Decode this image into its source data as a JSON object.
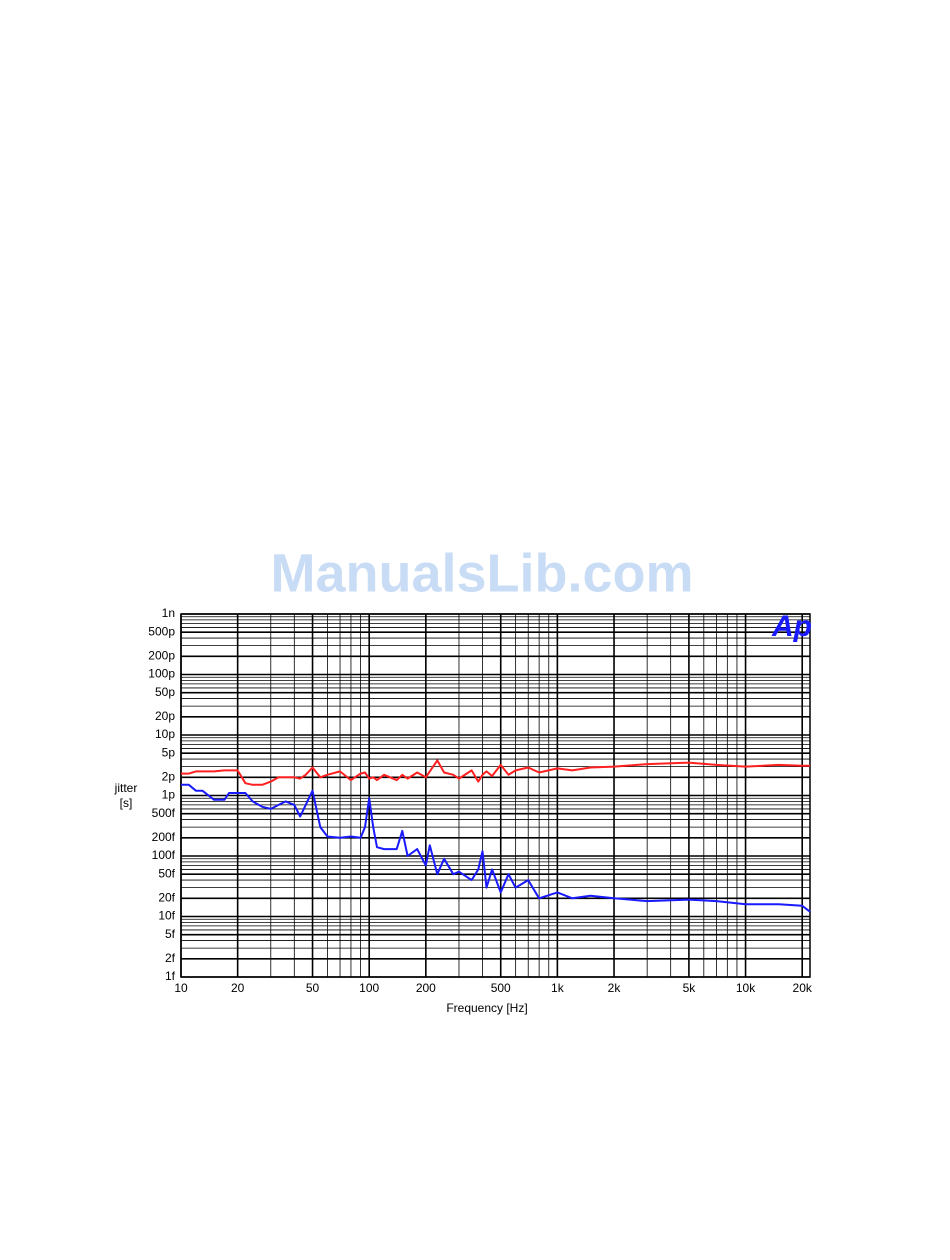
{
  "watermark": "ManualsLib.com",
  "logo": "Ap",
  "chart_data": {
    "type": "line",
    "xlabel": "Frequency [Hz]",
    "ylabel": [
      "jitter",
      "[s]"
    ],
    "xscale": "log",
    "yscale": "log",
    "grid": "major-minor",
    "xlim": [
      10,
      22000
    ],
    "ylim": [
      1e-15,
      1e-09
    ],
    "xticks": [
      10,
      20,
      50,
      100,
      200,
      500,
      {
        "value": 1000,
        "label": "1k"
      },
      {
        "value": 2000,
        "label": "2k"
      },
      {
        "value": 5000,
        "label": "5k"
      },
      {
        "value": 10000,
        "label": "10k"
      },
      {
        "value": 20000,
        "label": "20k"
      }
    ],
    "yticks": [
      {
        "value": 1e-09,
        "label": "1n"
      },
      {
        "value": 5e-10,
        "label": "500p"
      },
      {
        "value": 2e-10,
        "label": "200p"
      },
      {
        "value": 1e-10,
        "label": "100p"
      },
      {
        "value": 5e-11,
        "label": "50p"
      },
      {
        "value": 2e-11,
        "label": "20p"
      },
      {
        "value": 1e-11,
        "label": "10p"
      },
      {
        "value": 5e-12,
        "label": "5p"
      },
      {
        "value": 2e-12,
        "label": "2p"
      },
      {
        "value": 1e-12,
        "label": "1p"
      },
      {
        "value": 5e-13,
        "label": "500f"
      },
      {
        "value": 2e-13,
        "label": "200f"
      },
      {
        "value": 1e-13,
        "label": "100f"
      },
      {
        "value": 5e-14,
        "label": "50f"
      },
      {
        "value": 2e-14,
        "label": "20f"
      },
      {
        "value": 1e-14,
        "label": "10f"
      },
      {
        "value": 5e-15,
        "label": "5f"
      },
      {
        "value": 2e-15,
        "label": "2f"
      },
      {
        "value": 1e-15,
        "label": "1f"
      }
    ],
    "x": [
      10,
      11,
      12,
      13,
      15,
      17,
      18,
      20,
      22,
      24,
      27,
      30,
      33,
      36,
      40,
      43,
      46,
      50,
      55,
      60,
      70,
      80,
      90,
      95,
      100,
      105,
      110,
      120,
      140,
      150,
      160,
      180,
      200,
      210,
      230,
      250,
      280,
      300,
      350,
      380,
      400,
      420,
      450,
      500,
      550,
      600,
      700,
      800,
      1000,
      1200,
      1500,
      2000,
      3000,
      5000,
      7000,
      10000,
      15000,
      20000,
      22000
    ],
    "series": [
      {
        "color": "#ff2020",
        "values": [
          2.3e-12,
          2.3e-12,
          2.5e-12,
          2.5e-12,
          2.5e-12,
          2.6e-12,
          2.6e-12,
          2.6e-12,
          1.6e-12,
          1.5e-12,
          1.5e-12,
          1.7e-12,
          2e-12,
          2e-12,
          2e-12,
          1.9e-12,
          2.2e-12,
          2.9e-12,
          2e-12,
          2.2e-12,
          2.5e-12,
          1.8e-12,
          2.3e-12,
          2.4e-12,
          1.9e-12,
          2e-12,
          1.8e-12,
          2.2e-12,
          1.8e-12,
          2.2e-12,
          1.9e-12,
          2.4e-12,
          2e-12,
          2.5e-12,
          3.8e-12,
          2.4e-12,
          2.2e-12,
          1.9e-12,
          2.6e-12,
          1.7e-12,
          2.2e-12,
          2.5e-12,
          2.1e-12,
          3.2e-12,
          2.2e-12,
          2.6e-12,
          2.9e-12,
          2.4e-12,
          2.8e-12,
          2.6e-12,
          2.9e-12,
          3e-12,
          3.3e-12,
          3.5e-12,
          3.2e-12,
          3e-12,
          3.2e-12,
          3.1e-12,
          3.1e-12
        ]
      },
      {
        "color": "#1a1aff",
        "values": [
          1.5e-12,
          1.5e-12,
          1.2e-12,
          1.2e-12,
          8.5e-13,
          8.5e-13,
          1.1e-12,
          1.1e-12,
          1.1e-12,
          8e-13,
          6.5e-13,
          6e-13,
          7e-13,
          8e-13,
          7e-13,
          4.5e-13,
          7e-13,
          1.2e-12,
          3e-13,
          2.1e-13,
          2e-13,
          2.1e-13,
          2e-13,
          3e-13,
          9e-13,
          3e-13,
          1.4e-13,
          1.3e-13,
          1.3e-13,
          2.6e-13,
          1e-13,
          1.3e-13,
          7e-14,
          1.5e-13,
          5e-14,
          9e-14,
          5e-14,
          5.5e-14,
          4e-14,
          6e-14,
          1.2e-13,
          3e-14,
          6e-14,
          2.5e-14,
          5e-14,
          3e-14,
          4e-14,
          2e-14,
          2.5e-14,
          2e-14,
          2.2e-14,
          2e-14,
          1.8e-14,
          1.9e-14,
          1.8e-14,
          1.6e-14,
          1.6e-14,
          1.5e-14,
          1.2e-14
        ]
      }
    ]
  }
}
